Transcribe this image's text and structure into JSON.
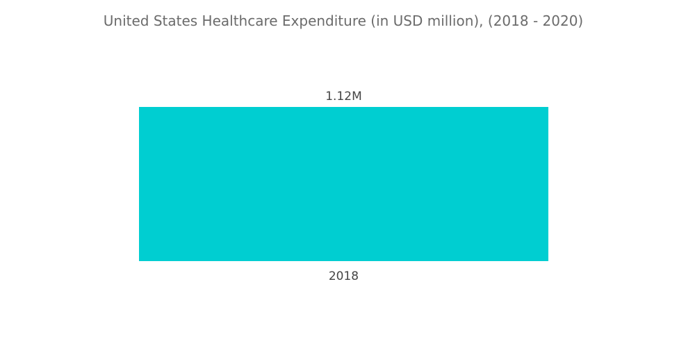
{
  "chart_data": {
    "type": "bar",
    "title": "United States Healthcare Expenditure (in USD million), (2018 - 2020)",
    "categories": [
      "2018"
    ],
    "values": [
      1120000
    ],
    "data_labels": [
      "1.12M"
    ],
    "xlabel": "",
    "ylabel": "",
    "ylim": [
      0,
      1120000
    ],
    "grid": false,
    "legend": "none",
    "bar_color": "#00CED1"
  }
}
